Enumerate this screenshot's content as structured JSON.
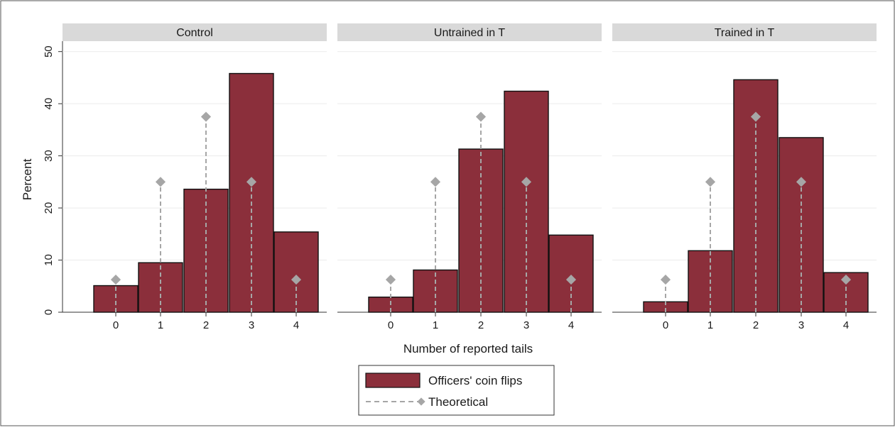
{
  "chart_data": {
    "type": "bar",
    "ylabel": "Percent",
    "xlabel": "Number of reported tails",
    "ylim": [
      0,
      52
    ],
    "yticks": [
      0,
      10,
      20,
      30,
      40,
      50
    ],
    "categories": [
      "0",
      "1",
      "2",
      "3",
      "4"
    ],
    "grid": true,
    "legend_position": "bottom",
    "colors": {
      "bar_fill": "#8b2f3b",
      "bar_stroke": "#111111",
      "theoretical": "#a6a6a6",
      "panel_header": "#d9d9d9",
      "grid": "#ececec"
    },
    "legend": {
      "bar_label": "Officers' coin flips",
      "theoretical_label": "Theoretical"
    },
    "theoretical": [
      6.25,
      25,
      37.5,
      25,
      6.25
    ],
    "panels": [
      {
        "title": "Control",
        "values": [
          5.1,
          9.5,
          23.6,
          45.8,
          15.4
        ]
      },
      {
        "title": "Untrained in T",
        "values": [
          2.9,
          8.1,
          31.3,
          42.4,
          14.8
        ]
      },
      {
        "title": "Trained in T",
        "values": [
          2.0,
          11.8,
          44.6,
          33.5,
          7.6
        ]
      }
    ]
  }
}
